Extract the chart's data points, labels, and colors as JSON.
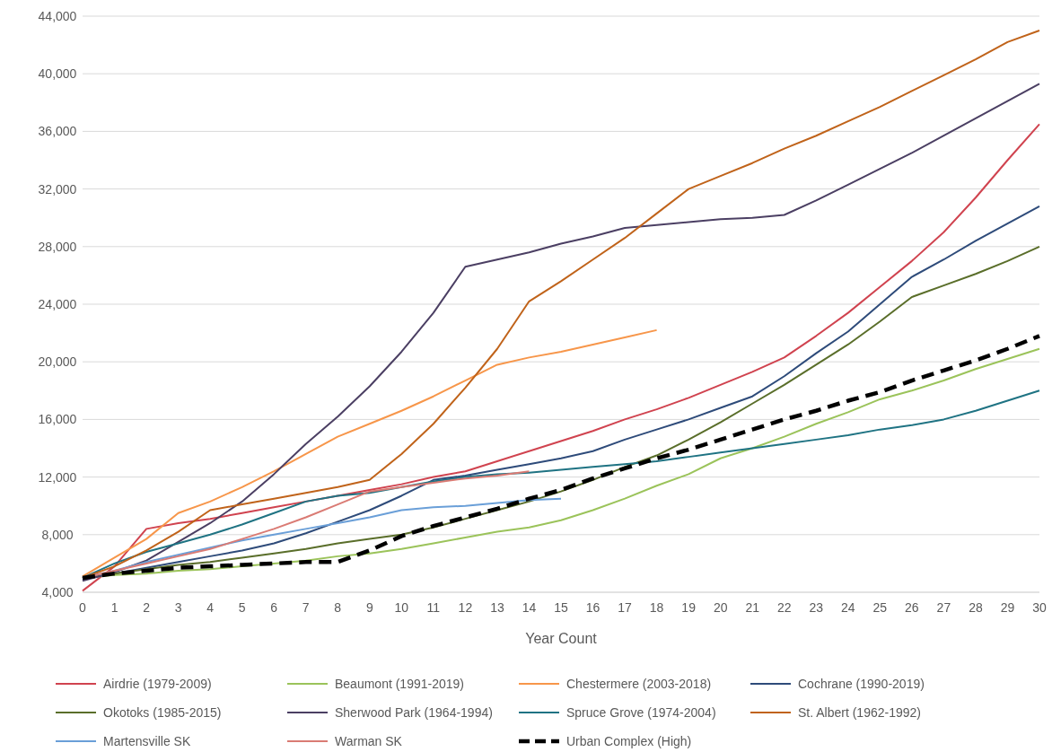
{
  "chart_data": {
    "type": "line",
    "xlabel": "Year Count",
    "xlim": [
      0,
      30
    ],
    "xticks": [
      0,
      1,
      2,
      3,
      4,
      5,
      6,
      7,
      8,
      9,
      10,
      11,
      12,
      13,
      14,
      15,
      16,
      17,
      18,
      19,
      20,
      21,
      22,
      23,
      24,
      25,
      26,
      27,
      28,
      29,
      30
    ],
    "ylim": [
      4000,
      44000
    ],
    "yticks": [
      {
        "value": 4000,
        "label": "4,000"
      },
      {
        "value": 8000,
        "label": "8,000"
      },
      {
        "value": 12000,
        "label": "12,000"
      },
      {
        "value": 16000,
        "label": "16,000"
      },
      {
        "value": 20000,
        "label": "20,000"
      },
      {
        "value": 24000,
        "label": "24,000"
      },
      {
        "value": 28000,
        "label": "28,000"
      },
      {
        "value": 32000,
        "label": "32,000"
      },
      {
        "value": 36000,
        "label": "36,000"
      },
      {
        "value": 40000,
        "label": "40,000"
      },
      {
        "value": 44000,
        "label": "44,000"
      }
    ],
    "grid": "y",
    "legend": "bottom",
    "marker": "none",
    "line_style": "solid",
    "x": [
      0,
      1,
      2,
      3,
      4,
      5,
      6,
      7,
      8,
      9,
      10,
      11,
      12,
      13,
      14,
      15,
      16,
      17,
      18,
      19,
      20,
      21,
      22,
      23,
      24,
      25,
      26,
      27,
      28,
      29,
      30
    ],
    "series": [
      {
        "name": "Airdrie (1979-2009)",
        "color": "#d0434f",
        "values": [
          4100,
          5800,
          8400,
          8800,
          9100,
          9500,
          9900,
          10300,
          10700,
          11100,
          11500,
          12000,
          12400,
          13100,
          13800,
          14500,
          15200,
          16000,
          16700,
          17500,
          18400,
          19300,
          20300,
          21800,
          23400,
          25200,
          27000,
          29000,
          31400,
          34000,
          36500
        ]
      },
      {
        "name": "Beaumont (1991-2019)",
        "color": "#9bc35a",
        "values": [
          5000,
          5200,
          5300,
          5500,
          5600,
          5800,
          6000,
          6200,
          6500,
          6700,
          7000,
          7400,
          7800,
          8200,
          8500,
          9000,
          9700,
          10500,
          11400,
          12200,
          13300,
          14000,
          14800,
          15700,
          16500,
          17400,
          18000,
          18700,
          19500,
          20200,
          20900
        ]
      },
      {
        "name": "Chestermere (2003-2018)",
        "color": "#f7964a",
        "values": [
          5100,
          6400,
          7700,
          9500,
          10300,
          11300,
          12400,
          13600,
          14800,
          15700,
          16600,
          17600,
          18700,
          19800,
          20300,
          20700,
          21200,
          21700,
          22200,
          null,
          null,
          null,
          null,
          null,
          null,
          null,
          null,
          null,
          null,
          null,
          null
        ]
      },
      {
        "name": "Cochrane (1990-2019)",
        "color": "#2e4b7a",
        "values": [
          4900,
          5300,
          5700,
          6100,
          6500,
          6900,
          7400,
          8100,
          8900,
          9700,
          10700,
          11800,
          12100,
          12500,
          12900,
          13300,
          13800,
          14600,
          15300,
          16000,
          16800,
          17600,
          19000,
          20600,
          22100,
          24000,
          25900,
          27100,
          28400,
          29600,
          30800
        ]
      },
      {
        "name": "Okotoks (1985-2015)",
        "color": "#5a6e2a",
        "values": [
          5000,
          5300,
          5600,
          5900,
          6100,
          6400,
          6700,
          7000,
          7400,
          7700,
          8000,
          8500,
          9100,
          9700,
          10300,
          11000,
          11800,
          12700,
          13500,
          14600,
          15800,
          17100,
          18400,
          19800,
          21200,
          22800,
          24500,
          25300,
          26100,
          27000,
          28000
        ]
      },
      {
        "name": "Sherwood Park (1964-1994)",
        "color": "#4b3f63",
        "values": [
          4800,
          5400,
          6200,
          7500,
          8800,
          10300,
          12200,
          14300,
          16200,
          18300,
          20700,
          23400,
          26600,
          27100,
          27600,
          28200,
          28700,
          29300,
          29500,
          29700,
          29900,
          30000,
          30200,
          31200,
          32300,
          33400,
          34500,
          35700,
          36900,
          38100,
          39300
        ]
      },
      {
        "name": "Spruce Grove (1974-2004)",
        "color": "#1f7383",
        "values": [
          5000,
          6000,
          6800,
          7400,
          8000,
          8700,
          9500,
          10300,
          10700,
          10900,
          11300,
          11700,
          12000,
          12200,
          12300,
          12500,
          12700,
          12900,
          13100,
          13400,
          13700,
          14000,
          14300,
          14600,
          14900,
          15300,
          15600,
          16000,
          16600,
          17300,
          18000
        ]
      },
      {
        "name": "St. Albert (1962-1992)",
        "color": "#c0631a",
        "values": [
          5000,
          5800,
          6900,
          8200,
          9700,
          10100,
          10500,
          10900,
          11300,
          11800,
          13600,
          15700,
          18200,
          20900,
          24200,
          25600,
          27100,
          28600,
          30300,
          32000,
          32900,
          33800,
          34800,
          35700,
          36700,
          37700,
          38800,
          39900,
          41000,
          42200,
          43000
        ]
      },
      {
        "name": "Martensville SK",
        "color": "#6a9fd8",
        "values": [
          5000,
          5500,
          6100,
          6600,
          7100,
          7600,
          8000,
          8400,
          8800,
          9200,
          9700,
          9900,
          10000,
          10200,
          10400,
          10500,
          null,
          null,
          null,
          null,
          null,
          null,
          null,
          null,
          null,
          null,
          null,
          null,
          null,
          null,
          null
        ]
      },
      {
        "name": "Warman SK",
        "color": "#da7b74",
        "values": [
          5000,
          5500,
          6000,
          6500,
          7000,
          7700,
          8400,
          9200,
          10100,
          11000,
          11300,
          11600,
          11900,
          12100,
          12400,
          null,
          null,
          null,
          null,
          null,
          null,
          null,
          null,
          null,
          null,
          null,
          null,
          null,
          null,
          null,
          null
        ]
      },
      {
        "name": "Urban Complex (High)",
        "color": "#000000",
        "line_style": "dashed",
        "values": [
          5000,
          5300,
          5500,
          5700,
          5800,
          5900,
          6000,
          6100,
          6100,
          6900,
          7900,
          8600,
          9200,
          9800,
          10500,
          11100,
          11900,
          12600,
          13300,
          13900,
          14600,
          15300,
          16000,
          16600,
          17300,
          17900,
          18700,
          19400,
          20100,
          20900,
          21800
        ]
      }
    ]
  }
}
